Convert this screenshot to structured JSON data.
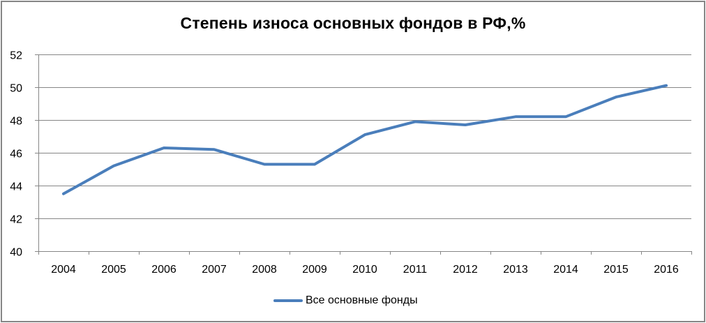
{
  "chart_data": {
    "type": "line",
    "title": "Степень износа основных фондов в РФ,%",
    "xlabel": "",
    "ylabel": "",
    "categories": [
      "2004",
      "2005",
      "2006",
      "2007",
      "2008",
      "2009",
      "2010",
      "2011",
      "2012",
      "2013",
      "2014",
      "2015",
      "2016"
    ],
    "series": [
      {
        "name": "Все основные фонды",
        "color": "#4a7ebb",
        "values": [
          43.5,
          45.2,
          46.3,
          46.2,
          45.3,
          45.3,
          47.1,
          47.9,
          47.7,
          48.2,
          48.2,
          49.4,
          50.1
        ]
      }
    ],
    "ylim": [
      40,
      52
    ],
    "yticks": [
      40,
      42,
      44,
      46,
      48,
      50,
      52
    ],
    "grid": true,
    "legend_position": "bottom"
  },
  "labels": {
    "title": "Степень износа основных фондов в РФ,%",
    "legend": "Все основные фонды"
  }
}
